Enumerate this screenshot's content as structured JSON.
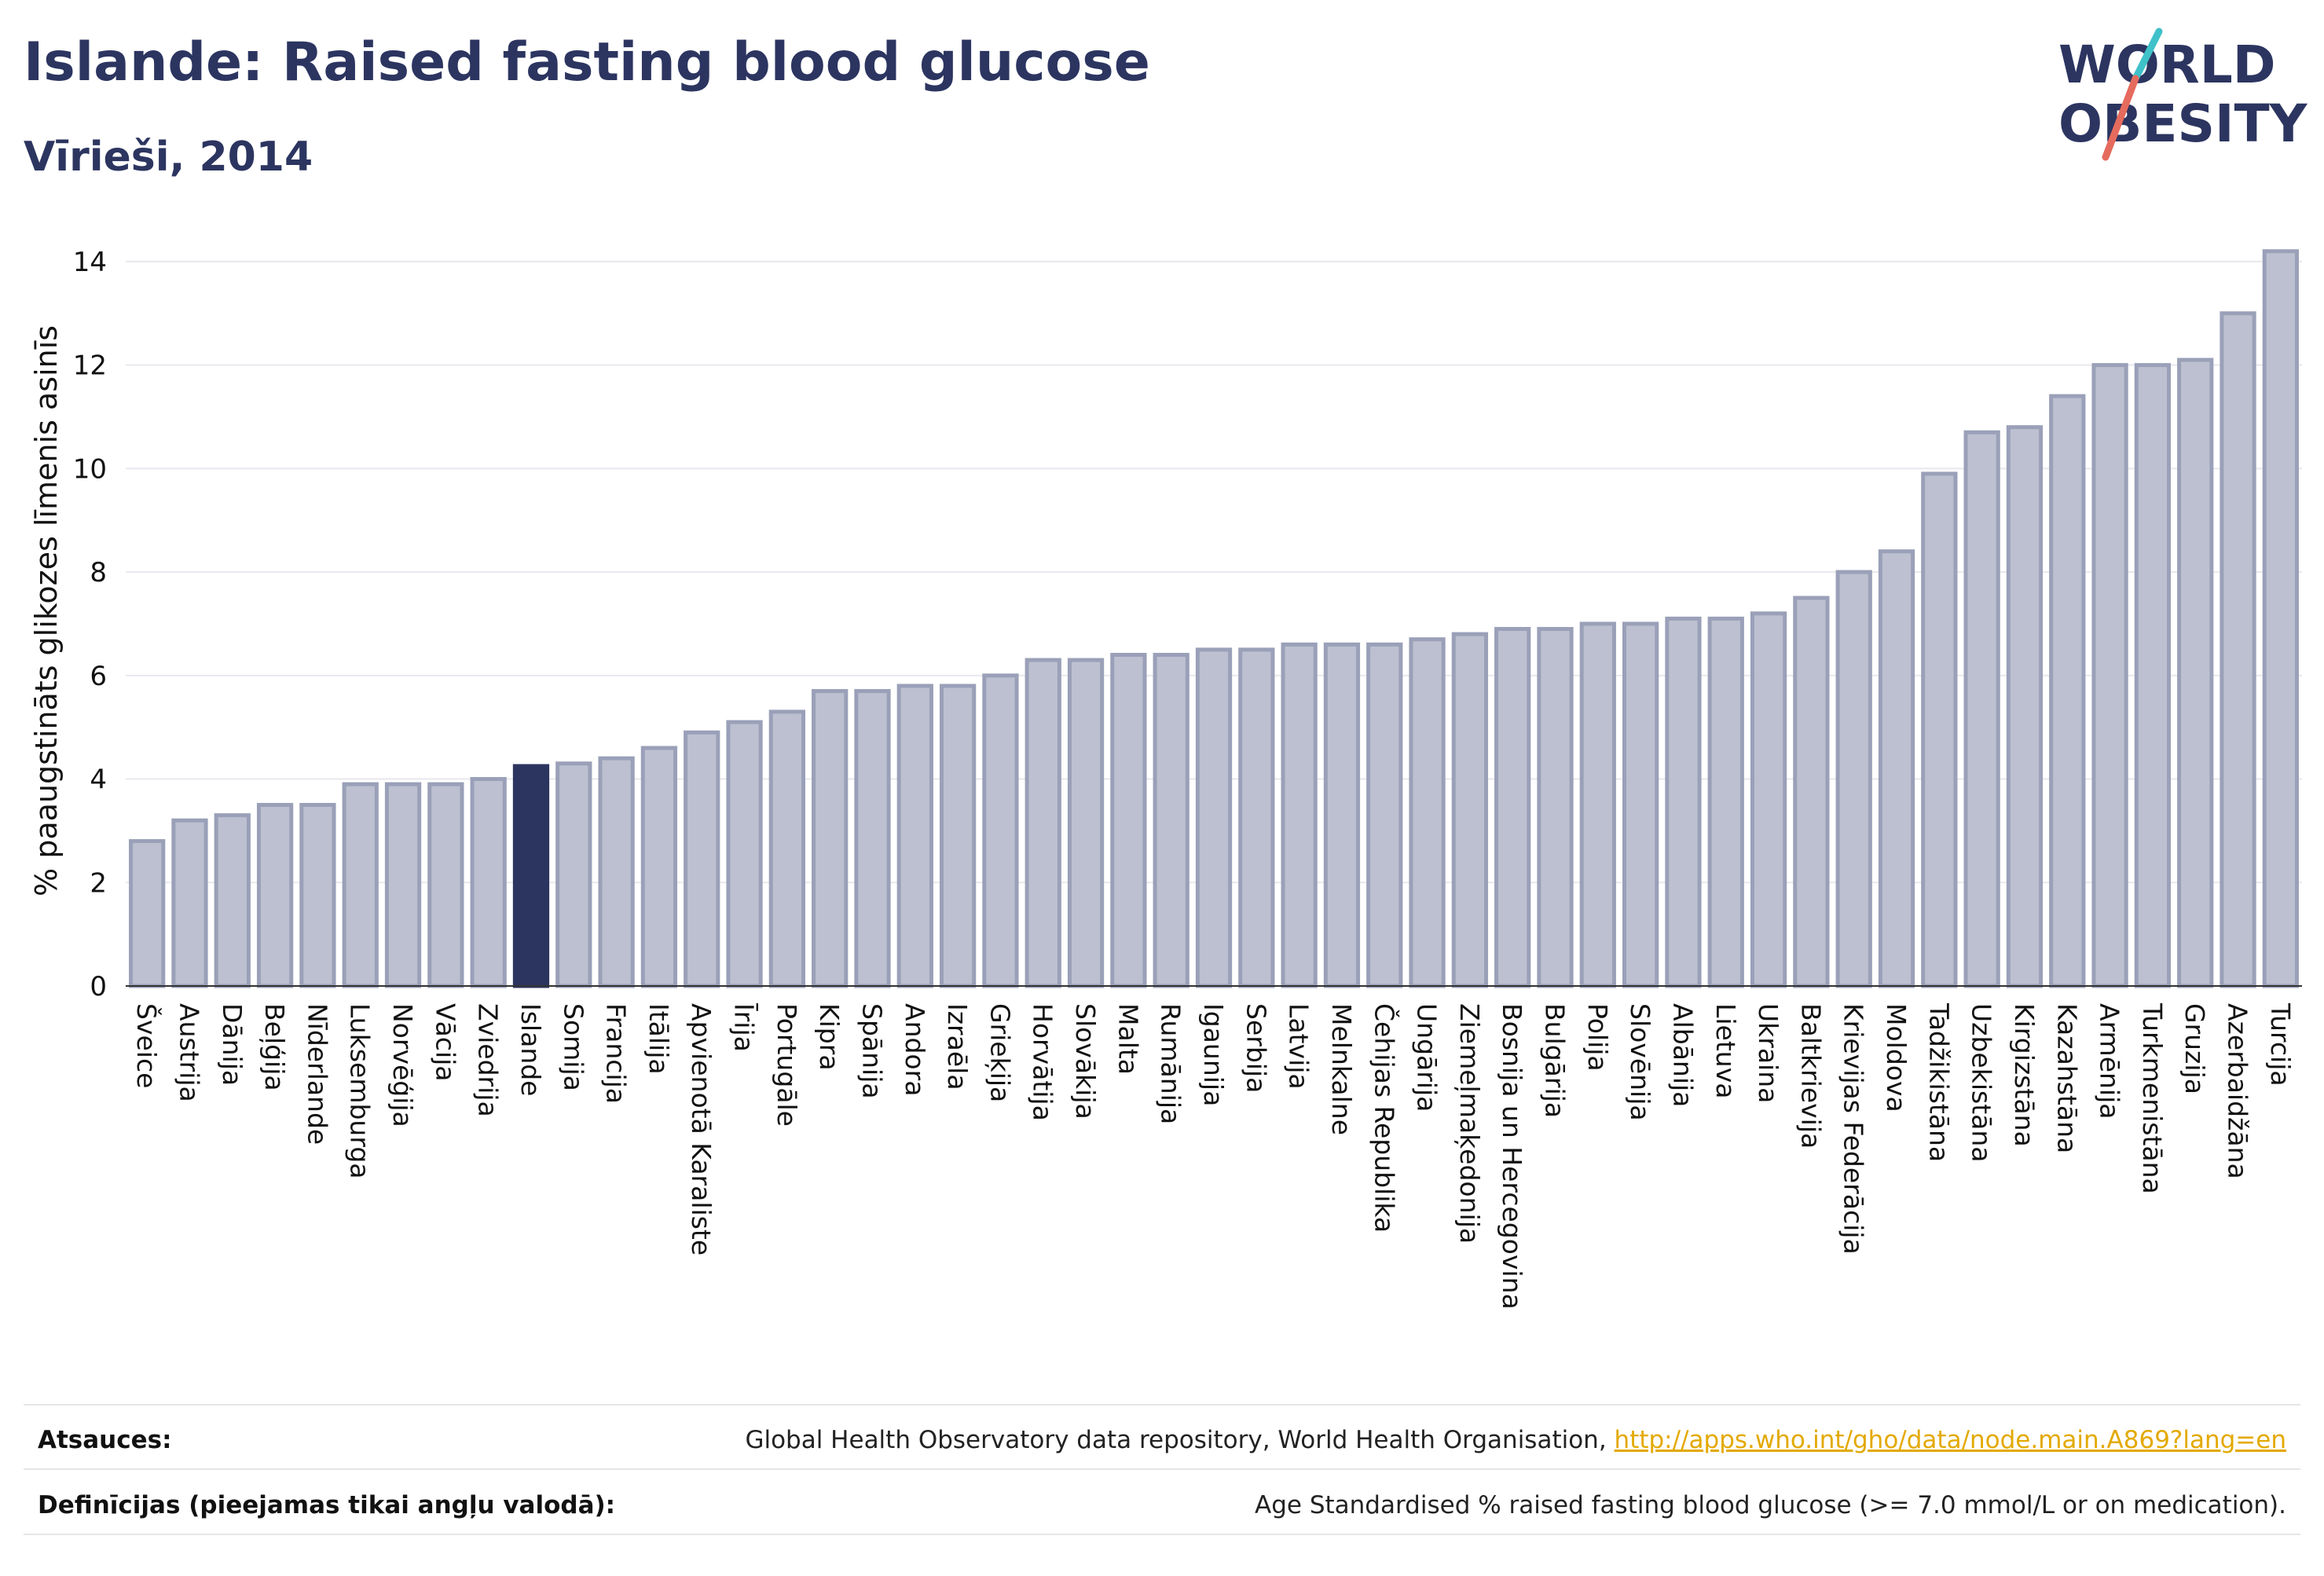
{
  "header": {
    "title": "Islande: Raised fasting blood glucose",
    "subtitle": "Vīrieši, 2014"
  },
  "logo": {
    "line1": "WORLD",
    "line2": "OBESITY",
    "text_color": "#2c3560",
    "slash_colors": [
      "#3fc1c9",
      "#e56b5d"
    ]
  },
  "colors": {
    "bar": "#bcc0d0",
    "bar_stroke": "#9aa0b8",
    "highlight": "#2c3560",
    "grid": "#e8e8ee",
    "axis_text": "#111111"
  },
  "chart_data": {
    "type": "bar",
    "title": "",
    "xlabel": "",
    "ylabel": "% paaugstināts glikozes līmenis asinīs",
    "ylim": [
      0,
      14.5
    ],
    "yticks": [
      0,
      2,
      4,
      6,
      8,
      10,
      12,
      14
    ],
    "highlight": "Islande",
    "grid": true,
    "categories": [
      "Šveice",
      "Austrija",
      "Dānija",
      "Beļģija",
      "Nīderlande",
      "Luksemburga",
      "Norvēģija",
      "Vācija",
      "Zviedrija",
      "Islande",
      "Somija",
      "Francija",
      "Itālija",
      "Apvienotā Karaliste",
      "Īrija",
      "Portugāle",
      "Kipra",
      "Spānija",
      "Andora",
      "Izraēla",
      "Grieķija",
      "Horvātija",
      "Slovākija",
      "Malta",
      "Rumānija",
      "Igaunija",
      "Serbija",
      "Latvija",
      "Melnkalne",
      "Čehijas Republika",
      "Ungārija",
      "Ziemeļmaķedonija",
      "Bosnija un Hercegovina",
      "Bulgārija",
      "Polija",
      "Slovēnija",
      "Albānija",
      "Lietuva",
      "Ukraina",
      "Baltkrievija",
      "Krievijas Federācija",
      "Moldova",
      "Tadžikistāna",
      "Uzbekistāna",
      "Kirgizstāna",
      "Kazahstāna",
      "Armēnija",
      "Turkmenistāna",
      "Gruzija",
      "Azerbaidžāna",
      "Turcija"
    ],
    "values": [
      2.8,
      3.2,
      3.3,
      3.5,
      3.5,
      3.9,
      3.9,
      3.9,
      4.0,
      4.25,
      4.3,
      4.4,
      4.6,
      4.9,
      5.1,
      5.3,
      5.7,
      5.7,
      5.8,
      5.8,
      6.0,
      6.3,
      6.3,
      6.4,
      6.4,
      6.5,
      6.5,
      6.6,
      6.6,
      6.6,
      6.7,
      6.8,
      6.9,
      6.9,
      7.0,
      7.0,
      7.1,
      7.1,
      7.2,
      7.5,
      8.0,
      8.4,
      9.9,
      10.7,
      10.8,
      11.4,
      12.0,
      12.0,
      12.1,
      13.0,
      14.2
    ]
  },
  "footer": {
    "sources_label": "Atsauces:",
    "sources_text": "Global Health Observatory data repository, World Health Organisation, ",
    "sources_link": "http://apps.who.int/gho/data/node.main.A869?lang=en",
    "definitions_label": "Definīcijas (pieejamas tikai angļu valodā):",
    "definitions_text": "Age Standardised % raised fasting blood glucose (>= 7.0 mmol/L or on medication)."
  }
}
